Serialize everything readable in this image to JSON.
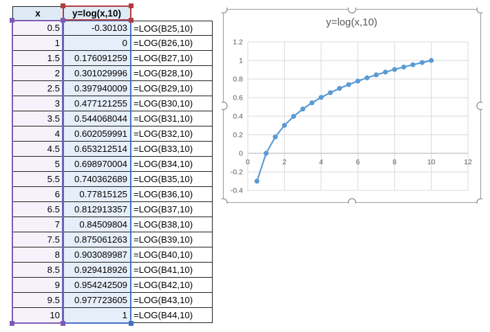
{
  "table": {
    "headers": {
      "x": "x",
      "y": "y=log(x,10)"
    },
    "rows": [
      {
        "x": "0.5",
        "y": "-0.30103",
        "formula": "=LOG(B25,10)"
      },
      {
        "x": "1",
        "y": "0",
        "formula": "=LOG(B26,10)"
      },
      {
        "x": "1.5",
        "y": "0.176091259",
        "formula": "=LOG(B27,10)"
      },
      {
        "x": "2",
        "y": "0.301029996",
        "formula": "=LOG(B28,10)"
      },
      {
        "x": "2.5",
        "y": "0.397940009",
        "formula": "=LOG(B29,10)"
      },
      {
        "x": "3",
        "y": "0.477121255",
        "formula": "=LOG(B30,10)"
      },
      {
        "x": "3.5",
        "y": "0.544068044",
        "formula": "=LOG(B31,10)"
      },
      {
        "x": "4",
        "y": "0.602059991",
        "formula": "=LOG(B32,10)"
      },
      {
        "x": "4.5",
        "y": "0.653212514",
        "formula": "=LOG(B33,10)"
      },
      {
        "x": "5",
        "y": "0.698970004",
        "formula": "=LOG(B34,10)"
      },
      {
        "x": "5.5",
        "y": "0.740362689",
        "formula": "=LOG(B35,10)"
      },
      {
        "x": "6",
        "y": "0.77815125",
        "formula": "=LOG(B36,10)"
      },
      {
        "x": "6.5",
        "y": "0.812913357",
        "formula": "=LOG(B37,10)"
      },
      {
        "x": "7",
        "y": "0.84509804",
        "formula": "=LOG(B38,10)"
      },
      {
        "x": "7.5",
        "y": "0.875061263",
        "formula": "=LOG(B39,10)"
      },
      {
        "x": "8",
        "y": "0.903089987",
        "formula": "=LOG(B40,10)"
      },
      {
        "x": "8.5",
        "y": "0.929418926",
        "formula": "=LOG(B41,10)"
      },
      {
        "x": "9",
        "y": "0.954242509",
        "formula": "=LOG(B42,10)"
      },
      {
        "x": "9.5",
        "y": "0.977723605",
        "formula": "=LOG(B43,10)"
      },
      {
        "x": "10",
        "y": "1",
        "formula": "=LOG(B44,10)"
      }
    ]
  },
  "chart_data": {
    "type": "line",
    "title": "y=log(x,10)",
    "x": [
      0.5,
      1,
      1.5,
      2,
      2.5,
      3,
      3.5,
      4,
      4.5,
      5,
      5.5,
      6,
      6.5,
      7,
      7.5,
      8,
      8.5,
      9,
      9.5,
      10
    ],
    "series": [
      {
        "name": "y=log(x,10)",
        "values": [
          -0.30103,
          0,
          0.176091259,
          0.301029996,
          0.397940009,
          0.477121255,
          0.544068044,
          0.602059991,
          0.653212514,
          0.698970004,
          0.740362689,
          0.77815125,
          0.812913357,
          0.84509804,
          0.875061263,
          0.903089987,
          0.929418926,
          0.954242509,
          0.977723605,
          1
        ]
      }
    ],
    "xlabel": "",
    "ylabel": "",
    "xlim": [
      0,
      12
    ],
    "ylim": [
      -0.4,
      1.2
    ],
    "xticks": [
      0,
      2,
      4,
      6,
      8,
      10,
      12
    ],
    "yticks": [
      -0.4,
      -0.2,
      0,
      0.2,
      0.4,
      0.6,
      0.8,
      1,
      1.2
    ],
    "grid": true,
    "legend": false,
    "marker": "circle"
  },
  "colors": {
    "series_line": "#5b9bd5",
    "gridline": "#d9d9d9",
    "zero_axis": "#bfbfbf",
    "axis_text": "#595959",
    "title_text": "#595959",
    "header_fill": "#deebf6",
    "x_range_fill": "#f6f2fb",
    "y_range_fill": "#e6eef9",
    "sel_purple": "#7e5bb5",
    "sel_blue": "#4472c4",
    "sel_red": "#b23b40",
    "chart_frame": "#9b9b9b"
  }
}
